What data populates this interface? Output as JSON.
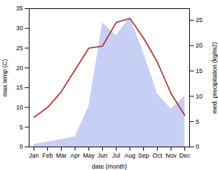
{
  "chart_data": {
    "type": "line",
    "xlabel": "date (month)",
    "ylabel": "max temp (C)",
    "y2label": "med. precipitation (kg/m2)",
    "categories": [
      "Jan",
      "Feb",
      "Mar",
      "Apr",
      "May",
      "Jun",
      "Jul",
      "Aug",
      "Sep",
      "Oct",
      "Nov",
      "Dec"
    ],
    "series": [
      {
        "type": "area",
        "axis": "y2",
        "color": "#c8cff5",
        "values": [
          0.5,
          1.0,
          1.5,
          2.0,
          8.0,
          24.5,
          22.0,
          25.5,
          18.5,
          10.5,
          7.5,
          10.0
        ]
      },
      {
        "type": "line",
        "color": "#b03535",
        "values": [
          7.5,
          10.0,
          14.0,
          19.5,
          25.0,
          25.5,
          31.5,
          32.5,
          27.5,
          21.5,
          13.5,
          8.0
        ]
      }
    ],
    "ylim": [
      0,
      35
    ],
    "yticks": [
      0,
      5,
      10,
      15,
      20,
      25,
      30,
      35
    ],
    "y2lim": [
      0,
      27.3
    ],
    "y2ticks": [
      0,
      5,
      10,
      15,
      20,
      25
    ],
    "grid": false
  }
}
